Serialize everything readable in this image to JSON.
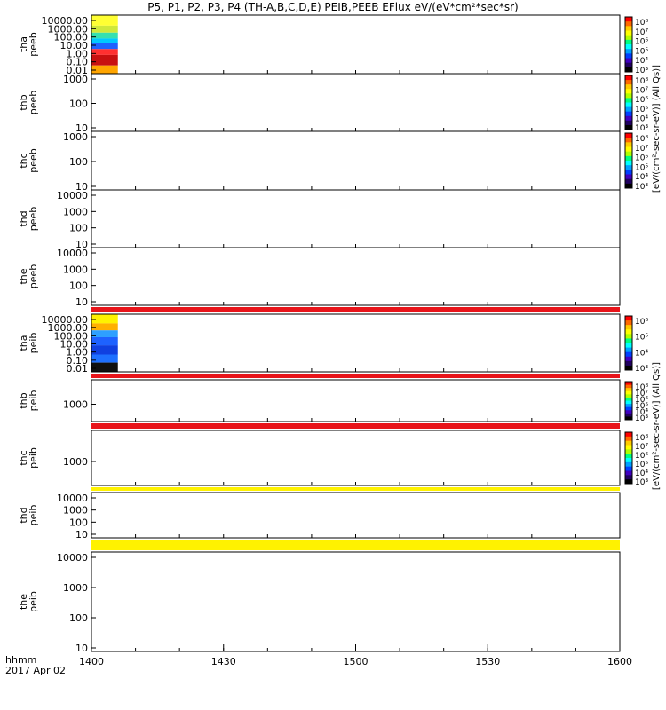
{
  "title": "P5, P1, P2, P3, P4 (TH-A,B,C,D,E) PEIB,PEEB EFlux eV/(eV*cm²*sec*sr)",
  "footer": {
    "xunit": "hhmm",
    "date": "2017 Apr 02"
  },
  "chart_data": {
    "type": "heatmap",
    "x_axis": {
      "ticks": [
        "1400",
        "1430",
        "1500",
        "1530",
        "1600"
      ],
      "range": [
        "1400",
        "1600"
      ]
    },
    "panels": [
      {
        "probe": "tha",
        "product": "peeb",
        "yticks": [
          "10000.00",
          "1000.00",
          "100.00",
          "10.00",
          "1.00",
          "0.10",
          "0.01"
        ],
        "data_until": "1406",
        "colorbar": true,
        "colorbar_ticks": [
          "10⁸",
          "10⁷",
          "10⁶",
          "10⁵",
          "10⁴",
          "10³"
        ]
      },
      {
        "probe": "thb",
        "product": "peeb",
        "yticks": [
          "1000",
          "100",
          "10"
        ],
        "colorbar": true,
        "colorbar_ticks": [
          "10⁸",
          "10⁷",
          "10⁶",
          "10⁵",
          "10⁴",
          "10³"
        ]
      },
      {
        "probe": "thc",
        "product": "peeb",
        "yticks": [
          "1000",
          "100",
          "10"
        ],
        "colorbar": true,
        "colorbar_ticks": [
          "10⁸",
          "10⁷",
          "10⁶",
          "10⁵",
          "10⁴",
          "10³"
        ]
      },
      {
        "probe": "thd",
        "product": "peeb",
        "yticks": [
          "10000",
          "1000",
          "100",
          "10"
        ]
      },
      {
        "probe": "the",
        "product": "peeb",
        "yticks": [
          "10000",
          "1000",
          "100",
          "10"
        ]
      },
      {
        "probe": "tha",
        "product": "peib",
        "yticks": [
          "10000.00",
          "1000.00",
          "100.00",
          "10.00",
          "1.00",
          "0.10",
          "0.01"
        ],
        "data_until": "1406",
        "colorbar": true,
        "colorbar_ticks": [
          "10⁶",
          "10⁵",
          "10⁴",
          "10³"
        ]
      },
      {
        "probe": "thb",
        "product": "peib",
        "yticks": [
          "1000"
        ],
        "colorbar": true,
        "colorbar_ticks": [
          "10⁸",
          "10⁷",
          "10⁶",
          "10⁵",
          "10⁴",
          "10³"
        ]
      },
      {
        "probe": "thc",
        "product": "peib",
        "yticks": [
          "1000"
        ],
        "colorbar": true,
        "colorbar_ticks": [
          "10⁸",
          "10⁷",
          "10⁶",
          "10⁵",
          "10⁴",
          "10³"
        ]
      },
      {
        "probe": "thd",
        "product": "peib",
        "yticks": [
          "10000",
          "1000",
          "100",
          "10"
        ]
      },
      {
        "probe": "the",
        "product": "peib",
        "yticks": [
          "10000",
          "1000",
          "100",
          "10"
        ]
      }
    ],
    "colorbar_labels": [
      "[eV/(cm²-sec-sr-eV)] (All Qs)]",
      "[eV/(cm²-sec-sr-eV)] (All Qs)]"
    ],
    "colors": {
      "red": "#e8141a",
      "yellow": "#fff200",
      "orange": "#ffa500",
      "blue": "#1e62ff"
    }
  }
}
